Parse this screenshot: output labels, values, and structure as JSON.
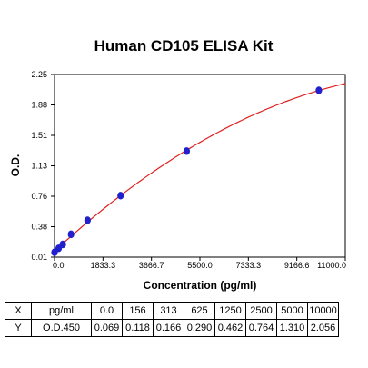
{
  "chart_data": {
    "type": "scatter",
    "title": "Human CD105 ELISA Kit",
    "xlabel": "Concentration (pg/ml)",
    "ylabel": "O.D.",
    "xlim": [
      0,
      11000
    ],
    "ylim": [
      0.01,
      2.25
    ],
    "x_ticks": [
      "0.0",
      "1833.3",
      "3666.7",
      "5500.0",
      "7333.3",
      "9166.6",
      "11000.0"
    ],
    "y_ticks": [
      "0.01",
      "0.38",
      "0.76",
      "1.13",
      "1.51",
      "1.88",
      "2.25"
    ],
    "grid": false,
    "series": [
      {
        "x": [
          0,
          156,
          313,
          625,
          1250,
          2500,
          5000,
          10000
        ],
        "y": [
          0.069,
          0.118,
          0.166,
          0.29,
          0.462,
          0.764,
          1.31,
          2.056
        ]
      }
    ],
    "fit_curve": true,
    "colors": {
      "points": "#2020cc",
      "curve": "#e02020",
      "axis": "#000000",
      "plot_bg": "#ffffff",
      "title": "#000000"
    }
  },
  "table": {
    "rows": [
      {
        "label": "X",
        "unit": "pg/ml",
        "values": [
          "0.0",
          "156",
          "313",
          "625",
          "1250",
          "2500",
          "5000",
          "10000"
        ]
      },
      {
        "label": "Y",
        "unit": "O.D.450",
        "values": [
          "0.069",
          "0.118",
          "0.166",
          "0.290",
          "0.462",
          "0.764",
          "1.310",
          "2.056"
        ]
      }
    ]
  }
}
